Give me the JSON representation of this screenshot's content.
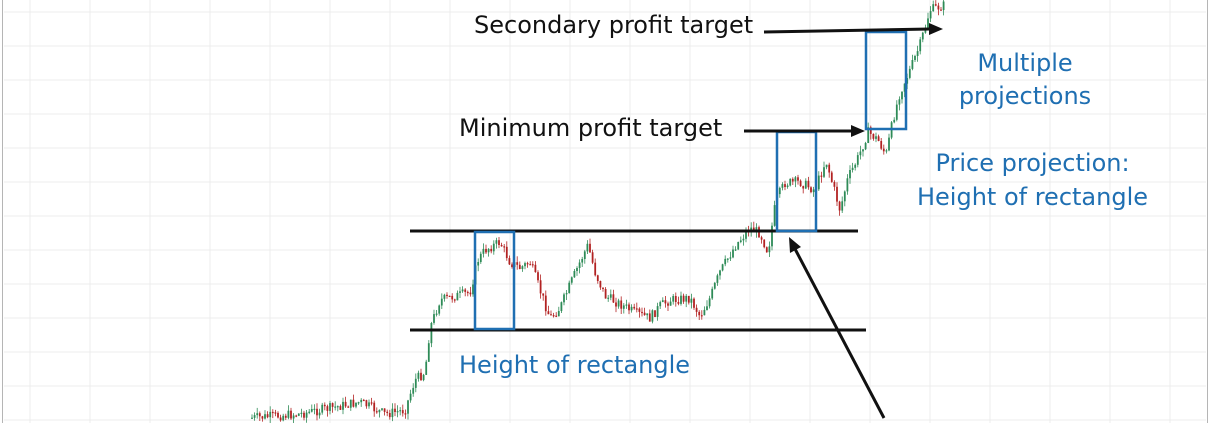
{
  "chart_data": {
    "type": "candlestick",
    "title": "",
    "xlabel": "",
    "ylabel": "",
    "grid": true,
    "colors": {
      "up": "#2e8b57",
      "down": "#b22222",
      "box": "#1f6fb2",
      "annotation": "#111111",
      "grid": "#ececec",
      "frame": "#b5b5b5"
    },
    "levels": {
      "resistance": 100,
      "support": 80,
      "minimum_target": 120,
      "secondary_target": 140
    },
    "projections": [
      "Height of rectangle",
      "Price projection: Height of rectangle",
      "Multiple projections"
    ]
  },
  "annotations": {
    "secondary": "Secondary profit target",
    "minimum": "Minimum profit target",
    "multiple_line1": "Multiple",
    "multiple_line2": "projections",
    "projection_line1": "Price projection:",
    "projection_line2": "Height of rectangle",
    "height": "Height of rectangle"
  }
}
